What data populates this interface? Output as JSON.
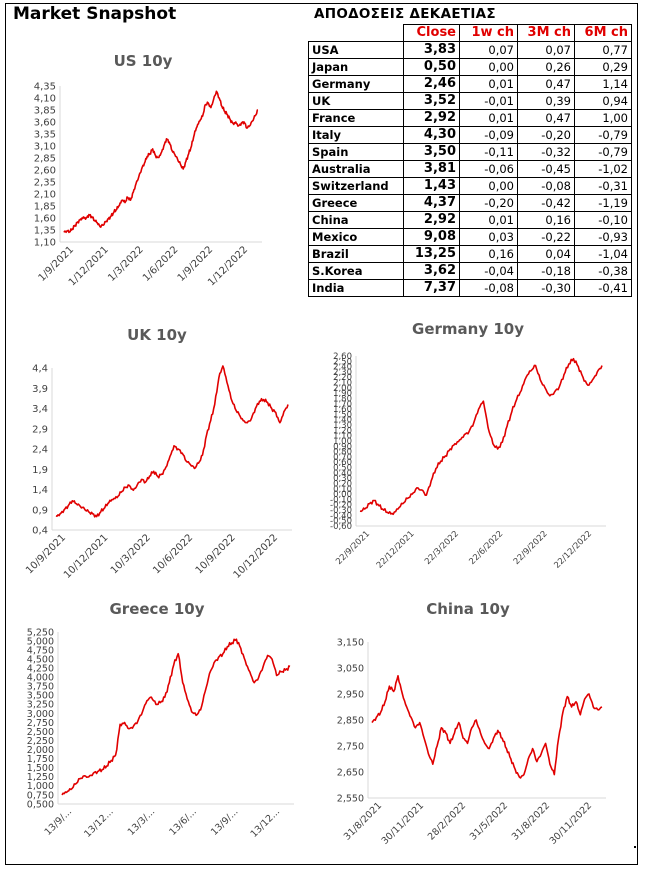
{
  "page_title": "Market Snapshot",
  "table": {
    "title": "ΑΠΟΔΟΣΕΙΣ ΔΕΚΑΕΤΙΑΣ",
    "headers": [
      "Close",
      "1w ch",
      "3M ch",
      "6M ch"
    ],
    "rows": [
      {
        "country": "USA",
        "close": "3,83",
        "w1": "0,07",
        "m3": "0,07",
        "m6": "0,77"
      },
      {
        "country": "Japan",
        "close": "0,50",
        "w1": "0,00",
        "m3": "0,26",
        "m6": "0,29"
      },
      {
        "country": "Germany",
        "close": "2,46",
        "w1": "0,01",
        "m3": "0,47",
        "m6": "1,14"
      },
      {
        "country": "UK",
        "close": "3,52",
        "w1": "-0,01",
        "m3": "0,39",
        "m6": "0,94"
      },
      {
        "country": "France",
        "close": "2,92",
        "w1": "0,01",
        "m3": "0,47",
        "m6": "1,00"
      },
      {
        "country": "Italy",
        "close": "4,30",
        "w1": "-0,09",
        "m3": "-0,20",
        "m6": "-0,79"
      },
      {
        "country": "Spain",
        "close": "3,50",
        "w1": "-0,11",
        "m3": "-0,32",
        "m6": "-0,79"
      },
      {
        "country": "Australia",
        "close": "3,81",
        "w1": "-0,06",
        "m3": "-0,45",
        "m6": "-1,02"
      },
      {
        "country": "Switzerland",
        "close": "1,43",
        "w1": "0,00",
        "m3": "-0,08",
        "m6": "-0,31"
      },
      {
        "country": "Greece",
        "close": "4,37",
        "w1": "-0,20",
        "m3": "-0,42",
        "m6": "-1,19"
      },
      {
        "country": "China",
        "close": "2,92",
        "w1": "0,01",
        "m3": "0,16",
        "m6": "-0,10"
      },
      {
        "country": "Mexico",
        "close": "9,08",
        "w1": "0,03",
        "m3": "-0,22",
        "m6": "-0,93"
      },
      {
        "country": "Brazil",
        "close": "13,25",
        "w1": "0,16",
        "m3": "0,04",
        "m6": "-1,04"
      },
      {
        "country": "S.Korea",
        "close": "3,62",
        "w1": "-0,04",
        "m3": "-0,18",
        "m6": "-0,38"
      },
      {
        "country": "India",
        "close": "7,37",
        "w1": "-0,08",
        "m3": "-0,30",
        "m6": "-0,41"
      }
    ]
  },
  "colors": {
    "series": "#e00000",
    "header_text": "#e00000",
    "title_text": "#595959",
    "axis": "#d9d9d9",
    "tick_text": "#404040"
  },
  "chart_data": [
    {
      "id": "us",
      "type": "line",
      "title": "US 10y",
      "xlabel": "",
      "ylabel": "",
      "x_tick_labels": [
        "1/9/2021",
        "1/12/2021",
        "1/3/2022",
        "1/6/2022",
        "1/9/2022",
        "1/12/2022"
      ],
      "y_tick_labels": [
        "1,10",
        "1,35",
        "1,60",
        "1,85",
        "2,10",
        "2,35",
        "2,60",
        "2,85",
        "3,10",
        "3,35",
        "3,60",
        "3,85",
        "4,10",
        "4,35"
      ],
      "ylim": [
        1.1,
        4.35
      ],
      "series": [
        {
          "values": [
            1.3,
            1.33,
            1.31,
            1.37,
            1.45,
            1.52,
            1.58,
            1.62,
            1.6,
            1.67,
            1.63,
            1.55,
            1.5,
            1.42,
            1.45,
            1.52,
            1.58,
            1.64,
            1.72,
            1.78,
            1.86,
            1.97,
            1.92,
            2.03,
            1.97,
            2.14,
            2.32,
            2.46,
            2.62,
            2.74,
            2.88,
            2.94,
            3.04,
            2.9,
            2.86,
            2.95,
            3.1,
            3.25,
            3.18,
            3.0,
            2.92,
            2.82,
            2.72,
            2.62,
            2.78,
            2.94,
            3.1,
            3.34,
            3.5,
            3.62,
            3.72,
            3.96,
            4.0,
            3.9,
            4.08,
            4.24,
            4.1,
            3.92,
            3.82,
            3.75,
            3.65,
            3.57,
            3.6,
            3.52,
            3.58,
            3.6,
            3.47,
            3.52,
            3.62,
            3.73,
            3.85
          ]
        }
      ]
    },
    {
      "id": "uk",
      "type": "line",
      "title": "UK 10y",
      "xlabel": "",
      "ylabel": "",
      "x_tick_labels": [
        "10/9/2021",
        "10/12/2021",
        "10/3/2022",
        "10/6/2022",
        "10/9/2022",
        "10/12/2022"
      ],
      "y_tick_labels": [
        "0,4",
        "0,9",
        "1,4",
        "1,9",
        "2,4",
        "2,9",
        "3,4",
        "3,9",
        "4,4"
      ],
      "ylim": [
        0.4,
        4.4
      ],
      "series": [
        {
          "values": [
            0.75,
            0.8,
            0.9,
            1.0,
            1.12,
            1.05,
            0.98,
            0.92,
            0.85,
            0.8,
            0.73,
            0.85,
            0.95,
            1.08,
            1.15,
            1.2,
            1.33,
            1.45,
            1.5,
            1.38,
            1.52,
            1.65,
            1.58,
            1.73,
            1.85,
            1.72,
            1.78,
            1.95,
            2.22,
            2.48,
            2.4,
            2.3,
            2.1,
            2.02,
            1.92,
            2.05,
            2.25,
            2.75,
            3.1,
            3.5,
            4.15,
            4.45,
            4.05,
            3.65,
            3.4,
            3.25,
            3.1,
            3.05,
            3.15,
            3.4,
            3.58,
            3.62,
            3.55,
            3.4,
            3.3,
            3.05,
            3.32,
            3.5
          ]
        }
      ]
    },
    {
      "id": "germany",
      "type": "line",
      "title": "Germany 10y",
      "xlabel": "",
      "ylabel": "",
      "x_tick_labels": [
        "22/9/2021",
        "22/12/2021",
        "22/3/2022",
        "22/6/2022",
        "22/9/2022",
        "22/12/2022"
      ],
      "y_tick_labels": [
        "-0,60",
        "-0,50",
        "-0,40",
        "-0,30",
        "-0,20",
        "-0,10",
        "0,00",
        "0,10",
        "0,20",
        "0,30",
        "0,40",
        "0,50",
        "0,60",
        "0,70",
        "0,80",
        "0,90",
        "1,00",
        "1,10",
        "1,20",
        "1,30",
        "1,40",
        "1,50",
        "1,60",
        "1,70",
        "1,80",
        "1,90",
        "2,00",
        "2,10",
        "2,20",
        "2,30",
        "2,40",
        "2,50",
        "2,60"
      ],
      "ylim": [
        -0.6,
        2.6
      ],
      "series": [
        {
          "values": [
            -0.32,
            -0.28,
            -0.18,
            -0.12,
            -0.22,
            -0.3,
            -0.36,
            -0.38,
            -0.28,
            -0.18,
            -0.08,
            0.0,
            0.12,
            0.08,
            -0.02,
            0.25,
            0.48,
            0.62,
            0.72,
            0.85,
            0.95,
            1.02,
            1.12,
            1.18,
            1.35,
            1.6,
            1.75,
            1.25,
            0.95,
            0.85,
            0.98,
            1.28,
            1.55,
            1.78,
            1.95,
            2.2,
            2.32,
            2.42,
            2.15,
            2.0,
            1.85,
            1.92,
            2.02,
            2.25,
            2.45,
            2.55,
            2.4,
            2.2,
            2.05,
            2.15,
            2.3,
            2.42
          ]
        }
      ]
    },
    {
      "id": "greece",
      "type": "line",
      "title": "Greece 10y",
      "xlabel": "",
      "ylabel": "",
      "x_tick_labels": [
        "13/9/...",
        "13/12...",
        "13/3/...",
        "13/6/...",
        "13/9/...",
        "13/12..."
      ],
      "y_tick_labels": [
        "0,500",
        "0,750",
        "1,000",
        "1,250",
        "1,500",
        "1,750",
        "2,000",
        "2,250",
        "2,500",
        "2,750",
        "3,000",
        "3,250",
        "3,500",
        "3,750",
        "4,000",
        "4,250",
        "4,500",
        "4,750",
        "5,000",
        "5,250"
      ],
      "ylim": [
        0.5,
        5.25
      ],
      "series": [
        {
          "values": [
            0.75,
            0.82,
            0.9,
            1.05,
            1.2,
            1.28,
            1.25,
            1.35,
            1.4,
            1.45,
            1.55,
            1.7,
            1.85,
            2.7,
            2.75,
            2.58,
            2.65,
            2.8,
            3.05,
            3.35,
            3.45,
            3.25,
            3.3,
            3.45,
            3.85,
            4.35,
            4.65,
            3.85,
            3.4,
            3.05,
            2.95,
            3.1,
            3.6,
            4.1,
            4.4,
            4.55,
            4.65,
            4.85,
            4.95,
            5.05,
            4.8,
            4.45,
            4.15,
            3.85,
            4.0,
            4.3,
            4.6,
            4.5,
            4.05,
            4.15,
            4.2,
            4.3
          ]
        }
      ]
    },
    {
      "id": "china",
      "type": "line",
      "title": "China 10y",
      "xlabel": "",
      "ylabel": "",
      "x_tick_labels": [
        "31/8/2021",
        "30/11/2021",
        "28/2/2022",
        "31/5/2022",
        "31/8/2022",
        "30/11/2022"
      ],
      "y_tick_labels": [
        "2,550",
        "2,650",
        "2,750",
        "2,850",
        "2,950",
        "3,050",
        "3,150"
      ],
      "ylim": [
        2.55,
        3.15
      ],
      "series": [
        {
          "values": [
            2.84,
            2.86,
            2.88,
            2.92,
            2.98,
            2.96,
            3.02,
            2.95,
            2.9,
            2.86,
            2.82,
            2.84,
            2.78,
            2.72,
            2.68,
            2.75,
            2.82,
            2.8,
            2.76,
            2.8,
            2.84,
            2.78,
            2.76,
            2.82,
            2.85,
            2.8,
            2.76,
            2.74,
            2.78,
            2.81,
            2.78,
            2.74,
            2.7,
            2.66,
            2.63,
            2.64,
            2.7,
            2.74,
            2.69,
            2.72,
            2.76,
            2.68,
            2.64,
            2.78,
            2.88,
            2.94,
            2.9,
            2.92,
            2.87,
            2.93,
            2.95,
            2.9,
            2.89,
            2.9
          ]
        }
      ]
    }
  ]
}
